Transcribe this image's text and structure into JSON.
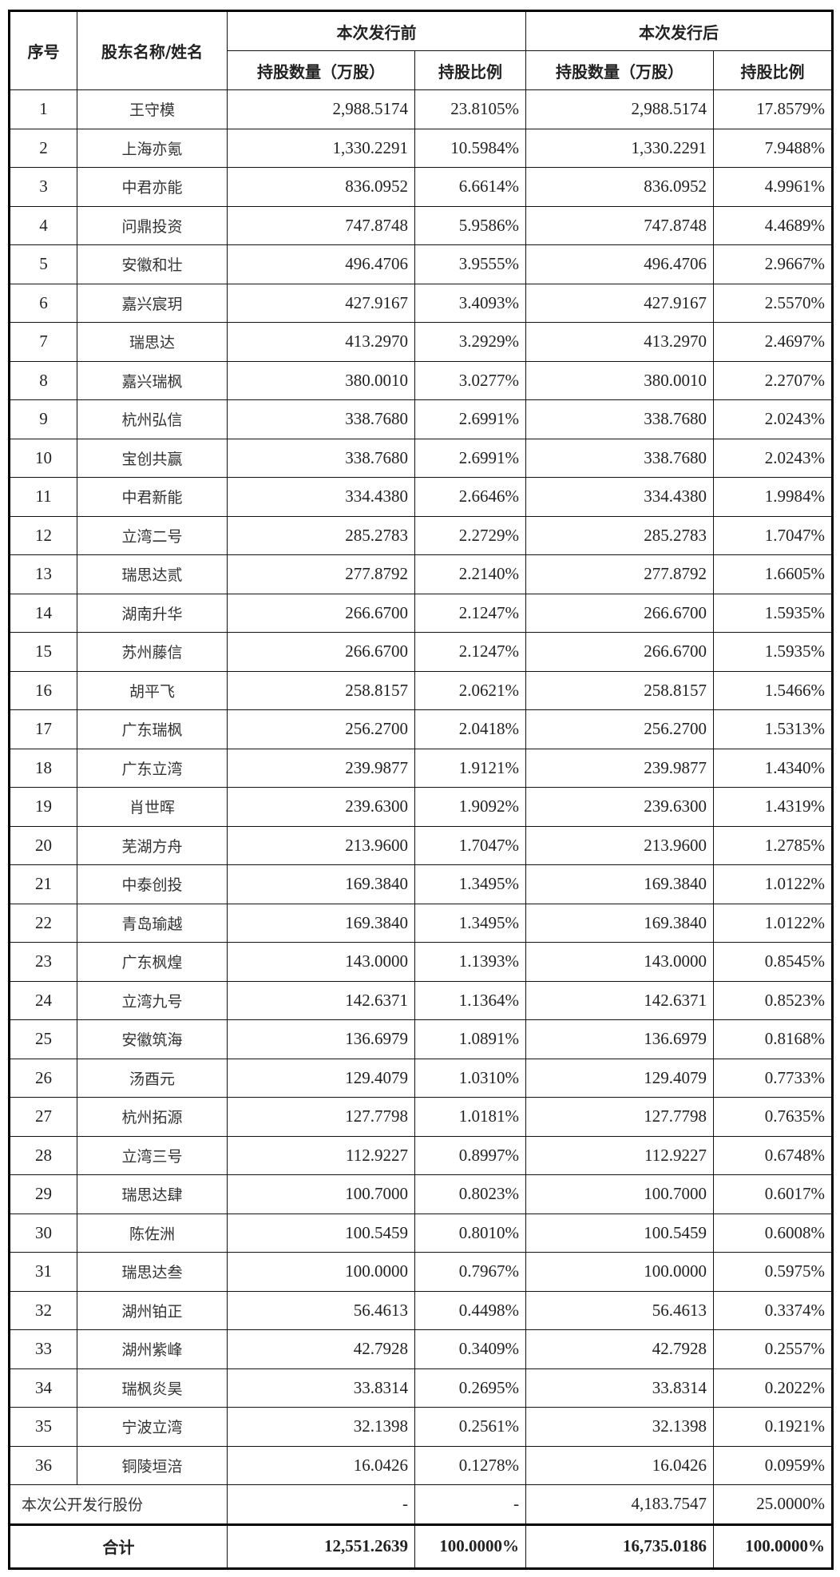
{
  "header": {
    "seq": "序号",
    "name": "股东名称/姓名",
    "before": "本次发行前",
    "after": "本次发行后",
    "shares": "持股数量（万股）",
    "ratio": "持股比例"
  },
  "rows": [
    [
      "1",
      "王守模",
      "2,988.5174",
      "23.8105%",
      "2,988.5174",
      "17.8579%"
    ],
    [
      "2",
      "上海亦氪",
      "1,330.2291",
      "10.5984%",
      "1,330.2291",
      "7.9488%"
    ],
    [
      "3",
      "中君亦能",
      "836.0952",
      "6.6614%",
      "836.0952",
      "4.9961%"
    ],
    [
      "4",
      "问鼎投资",
      "747.8748",
      "5.9586%",
      "747.8748",
      "4.4689%"
    ],
    [
      "5",
      "安徽和壮",
      "496.4706",
      "3.9555%",
      "496.4706",
      "2.9667%"
    ],
    [
      "6",
      "嘉兴宸玥",
      "427.9167",
      "3.4093%",
      "427.9167",
      "2.5570%"
    ],
    [
      "7",
      "瑞思达",
      "413.2970",
      "3.2929%",
      "413.2970",
      "2.4697%"
    ],
    [
      "8",
      "嘉兴瑞枫",
      "380.0010",
      "3.0277%",
      "380.0010",
      "2.2707%"
    ],
    [
      "9",
      "杭州弘信",
      "338.7680",
      "2.6991%",
      "338.7680",
      "2.0243%"
    ],
    [
      "10",
      "宝创共赢",
      "338.7680",
      "2.6991%",
      "338.7680",
      "2.0243%"
    ],
    [
      "11",
      "中君新能",
      "334.4380",
      "2.6646%",
      "334.4380",
      "1.9984%"
    ],
    [
      "12",
      "立湾二号",
      "285.2783",
      "2.2729%",
      "285.2783",
      "1.7047%"
    ],
    [
      "13",
      "瑞思达贰",
      "277.8792",
      "2.2140%",
      "277.8792",
      "1.6605%"
    ],
    [
      "14",
      "湖南升华",
      "266.6700",
      "2.1247%",
      "266.6700",
      "1.5935%"
    ],
    [
      "15",
      "苏州藤信",
      "266.6700",
      "2.1247%",
      "266.6700",
      "1.5935%"
    ],
    [
      "16",
      "胡平飞",
      "258.8157",
      "2.0621%",
      "258.8157",
      "1.5466%"
    ],
    [
      "17",
      "广东瑞枫",
      "256.2700",
      "2.0418%",
      "256.2700",
      "1.5313%"
    ],
    [
      "18",
      "广东立湾",
      "239.9877",
      "1.9121%",
      "239.9877",
      "1.4340%"
    ],
    [
      "19",
      "肖世晖",
      "239.6300",
      "1.9092%",
      "239.6300",
      "1.4319%"
    ],
    [
      "20",
      "芜湖方舟",
      "213.9600",
      "1.7047%",
      "213.9600",
      "1.2785%"
    ],
    [
      "21",
      "中泰创投",
      "169.3840",
      "1.3495%",
      "169.3840",
      "1.0122%"
    ],
    [
      "22",
      "青岛瑜越",
      "169.3840",
      "1.3495%",
      "169.3840",
      "1.0122%"
    ],
    [
      "23",
      "广东枫煌",
      "143.0000",
      "1.1393%",
      "143.0000",
      "0.8545%"
    ],
    [
      "24",
      "立湾九号",
      "142.6371",
      "1.1364%",
      "142.6371",
      "0.8523%"
    ],
    [
      "25",
      "安徽筑海",
      "136.6979",
      "1.0891%",
      "136.6979",
      "0.8168%"
    ],
    [
      "26",
      "汤酉元",
      "129.4079",
      "1.0310%",
      "129.4079",
      "0.7733%"
    ],
    [
      "27",
      "杭州拓源",
      "127.7798",
      "1.0181%",
      "127.7798",
      "0.7635%"
    ],
    [
      "28",
      "立湾三号",
      "112.9227",
      "0.8997%",
      "112.9227",
      "0.6748%"
    ],
    [
      "29",
      "瑞思达肆",
      "100.7000",
      "0.8023%",
      "100.7000",
      "0.6017%"
    ],
    [
      "30",
      "陈佐洲",
      "100.5459",
      "0.8010%",
      "100.5459",
      "0.6008%"
    ],
    [
      "31",
      "瑞思达叁",
      "100.0000",
      "0.7967%",
      "100.0000",
      "0.5975%"
    ],
    [
      "32",
      "湖州铂正",
      "56.4613",
      "0.4498%",
      "56.4613",
      "0.3374%"
    ],
    [
      "33",
      "湖州紫峰",
      "42.7928",
      "0.3409%",
      "42.7928",
      "0.2557%"
    ],
    [
      "34",
      "瑞枫炎昊",
      "33.8314",
      "0.2695%",
      "33.8314",
      "0.2022%"
    ],
    [
      "35",
      "宁波立湾",
      "32.1398",
      "0.2561%",
      "32.1398",
      "0.1921%"
    ],
    [
      "36",
      "铜陵垣涪",
      "16.0426",
      "0.1278%",
      "16.0426",
      "0.0959%"
    ]
  ],
  "public_offering": {
    "label": "本次公开发行股份",
    "before_shares": "-",
    "before_ratio": "-",
    "after_shares": "4,183.7547",
    "after_ratio": "25.0000%"
  },
  "total": {
    "label": "合计",
    "before_shares": "12,551.2639",
    "before_ratio": "100.0000%",
    "after_shares": "16,735.0186",
    "after_ratio": "100.0000%"
  }
}
